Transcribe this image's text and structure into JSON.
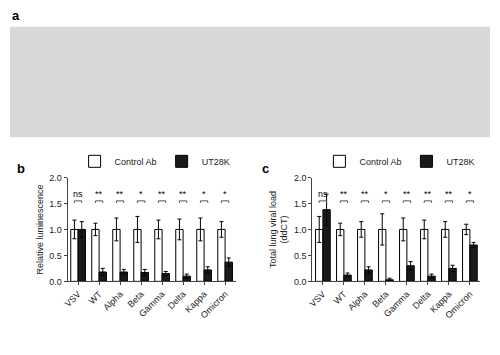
{
  "chart_data": [
    {
      "type": "image",
      "title": "a",
      "color": "#d8d8d8",
      "tick_labels": false
    },
    {
      "type": "bar",
      "title": "b",
      "categories": [
        "VSV",
        "WT",
        "Alpha",
        "Beta",
        "Gamma",
        "Delta",
        "Kappa",
        "Omicron"
      ],
      "series": [
        {
          "name": "Control Ab",
          "color": "#ffffff",
          "values": [
            1.0,
            1.0,
            1.0,
            1.0,
            1.0,
            1.0,
            1.0,
            1.0
          ],
          "errors": [
            0.18,
            0.12,
            0.22,
            0.25,
            0.18,
            0.2,
            0.22,
            0.15
          ]
        },
        {
          "name": "UT28K",
          "color": "#1a1a1a",
          "values": [
            1.0,
            0.18,
            0.18,
            0.17,
            0.15,
            0.1,
            0.22,
            0.37
          ],
          "errors": [
            0.15,
            0.07,
            0.05,
            0.06,
            0.04,
            0.04,
            0.06,
            0.08
          ]
        }
      ],
      "ylabel": "Relative luminescence",
      "ylim": [
        0,
        2.0
      ],
      "yticks": [
        {
          "value": 0,
          "label": "0.0"
        },
        0.5,
        {
          "value": 1,
          "label": "1.0"
        },
        1.5,
        {
          "value": 2,
          "label": "2.0"
        }
      ],
      "annotations": [
        {
          "x": "VSV",
          "y": 1.55,
          "text": "ns"
        },
        {
          "x": "WT",
          "y": 1.55,
          "text": "**"
        },
        {
          "x": "Alpha",
          "y": 1.55,
          "text": "**"
        },
        {
          "x": "Beta",
          "y": 1.55,
          "text": "*"
        },
        {
          "x": "Gamma",
          "y": 1.55,
          "text": "**"
        },
        {
          "x": "Delta",
          "y": 1.55,
          "text": "**"
        },
        {
          "x": "Kappa",
          "y": 1.55,
          "text": "*"
        },
        {
          "x": "Omicron",
          "y": 1.55,
          "text": "*"
        }
      ],
      "legend": "upper right",
      "grid": false
    },
    {
      "type": "bar",
      "title": "c",
      "categories": [
        "VSV",
        "WT",
        "Alpha",
        "Beta",
        "Gamma",
        "Delta",
        "Kappa",
        "Omicron"
      ],
      "series": [
        {
          "name": "Control Ab",
          "color": "#ffffff",
          "values": [
            1.0,
            1.0,
            1.0,
            1.0,
            1.0,
            1.0,
            1.0,
            1.0
          ],
          "errors": [
            0.25,
            0.12,
            0.15,
            0.3,
            0.22,
            0.18,
            0.15,
            0.1
          ]
        },
        {
          "name": "UT28K",
          "color": "#1a1a1a",
          "values": [
            1.38,
            0.12,
            0.22,
            0.03,
            0.3,
            0.1,
            0.25,
            0.7
          ],
          "errors": [
            0.3,
            0.04,
            0.06,
            0.03,
            0.08,
            0.04,
            0.06,
            0.05
          ]
        }
      ],
      "ylabel": "Total lung viral load\n(ddCT)",
      "ylim": [
        0,
        2.0
      ],
      "yticks": [
        {
          "value": 0,
          "label": "0.0"
        },
        0.5,
        {
          "value": 1,
          "label": "1.0"
        },
        1.5,
        {
          "value": 2,
          "label": "2.0"
        }
      ],
      "annotations": [
        {
          "x": "VSV",
          "y": 1.55,
          "text": "ns"
        },
        {
          "x": "WT",
          "y": 1.55,
          "text": "**"
        },
        {
          "x": "Alpha",
          "y": 1.55,
          "text": "**"
        },
        {
          "x": "Beta",
          "y": 1.55,
          "text": "*"
        },
        {
          "x": "Gamma",
          "y": 1.55,
          "text": "**"
        },
        {
          "x": "Delta",
          "y": 1.55,
          "text": "**"
        },
        {
          "x": "Kappa",
          "y": 1.55,
          "text": "**"
        },
        {
          "x": "Omicron",
          "y": 1.55,
          "text": "*"
        }
      ],
      "legend": "upper right",
      "grid": false
    }
  ]
}
